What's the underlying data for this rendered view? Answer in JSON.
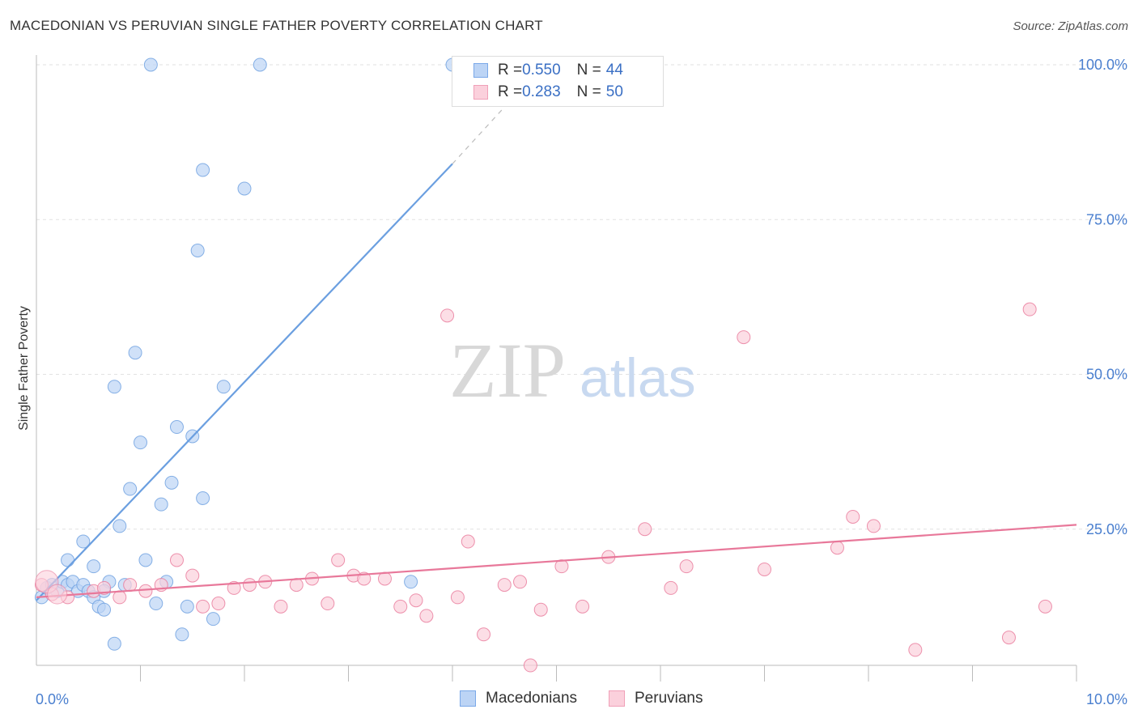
{
  "title": "MACEDONIAN VS PERUVIAN SINGLE FATHER POVERTY CORRELATION CHART",
  "source": "Source: ZipAtlas.com",
  "watermark": {
    "zip": "ZIP",
    "atlas": "atlas"
  },
  "legend": {
    "rows": [
      {
        "r_label": "R = ",
        "r_value": "0.550",
        "n_label": "N = ",
        "n_value": "44",
        "color": "#7aa8e8",
        "fill": "#bcd4f5"
      },
      {
        "r_label": "R = ",
        "r_value": "0.283",
        "n_label": "N = ",
        "n_value": "50",
        "color": "#f0a0b8",
        "fill": "#fbd0dc"
      }
    ]
  },
  "bottom_legend": [
    {
      "label": "Macedonians",
      "color": "#7aa8e8",
      "fill": "#bcd4f5"
    },
    {
      "label": "Peruvians",
      "color": "#f0a0b8",
      "fill": "#fbd0dc"
    }
  ],
  "chart_data": {
    "type": "scatter",
    "title": "MACEDONIAN VS PERUVIAN SINGLE FATHER POVERTY CORRELATION CHART",
    "xlabel": "",
    "ylabel": "Single Father Poverty",
    "xlim": [
      0,
      10
    ],
    "ylim": [
      0,
      105
    ],
    "x_ticks": [
      {
        "value": 0,
        "label": "0.0%"
      },
      {
        "value": 10,
        "label": "10.0%"
      }
    ],
    "y_ticks": [
      {
        "value": 25,
        "label": "25.0%"
      },
      {
        "value": 50,
        "label": "50.0%"
      },
      {
        "value": 75,
        "label": "75.0%"
      },
      {
        "value": 100,
        "label": "100.0%"
      }
    ],
    "grid": true,
    "series": [
      {
        "name": "Macedonians",
        "color": "#6b9fe0",
        "fill": "#bcd4f5",
        "trend": {
          "x0": 0,
          "y0": 13.5,
          "x1": 4.0,
          "y1": 84,
          "dash_to_x": 4.6,
          "dash_to_y": 95
        },
        "points": [
          [
            0.05,
            14
          ],
          [
            0.1,
            15.5
          ],
          [
            0.15,
            16
          ],
          [
            0.2,
            15
          ],
          [
            0.25,
            16.5
          ],
          [
            0.3,
            16
          ],
          [
            0.35,
            16.5
          ],
          [
            0.4,
            15
          ],
          [
            0.45,
            16
          ],
          [
            0.5,
            15
          ],
          [
            0.55,
            14
          ],
          [
            0.6,
            12.5
          ],
          [
            0.65,
            12
          ],
          [
            0.7,
            16.5
          ],
          [
            0.75,
            48
          ],
          [
            0.8,
            25.5
          ],
          [
            0.85,
            16
          ],
          [
            0.9,
            31.5
          ],
          [
            0.95,
            53.5
          ],
          [
            1.0,
            39
          ],
          [
            1.05,
            20
          ],
          [
            1.1,
            100
          ],
          [
            1.15,
            13
          ],
          [
            1.2,
            29
          ],
          [
            1.25,
            16.5
          ],
          [
            1.3,
            32.5
          ],
          [
            1.35,
            41.5
          ],
          [
            1.4,
            8
          ],
          [
            1.45,
            12.5
          ],
          [
            1.5,
            40
          ],
          [
            1.55,
            70
          ],
          [
            1.6,
            83
          ],
          [
            1.7,
            10.5
          ],
          [
            1.6,
            30
          ],
          [
            1.8,
            48
          ],
          [
            2.0,
            80
          ],
          [
            2.15,
            100
          ],
          [
            3.6,
            16.5
          ],
          [
            4.0,
            100
          ],
          [
            0.3,
            20
          ],
          [
            0.45,
            23
          ],
          [
            0.55,
            19
          ],
          [
            0.75,
            6.5
          ],
          [
            0.65,
            15
          ]
        ]
      },
      {
        "name": "Peruvians",
        "color": "#e8789a",
        "fill": "#fbd0dc",
        "trend": {
          "x0": 0,
          "y0": 14,
          "x1": 10,
          "y1": 25.7
        },
        "points": [
          [
            0.05,
            16
          ],
          [
            0.15,
            14.5
          ],
          [
            0.3,
            14
          ],
          [
            0.55,
            15
          ],
          [
            0.65,
            15.5
          ],
          [
            0.8,
            14
          ],
          [
            0.9,
            16
          ],
          [
            1.05,
            15
          ],
          [
            1.2,
            16
          ],
          [
            1.35,
            20
          ],
          [
            1.5,
            17.5
          ],
          [
            1.6,
            12.5
          ],
          [
            1.75,
            13
          ],
          [
            1.9,
            15.5
          ],
          [
            2.05,
            16
          ],
          [
            2.2,
            16.5
          ],
          [
            2.35,
            12.5
          ],
          [
            2.5,
            16
          ],
          [
            2.65,
            17
          ],
          [
            2.8,
            13
          ],
          [
            2.9,
            20
          ],
          [
            3.05,
            17.5
          ],
          [
            3.15,
            17
          ],
          [
            3.35,
            17
          ],
          [
            3.5,
            12.5
          ],
          [
            3.65,
            13.5
          ],
          [
            3.75,
            11
          ],
          [
            3.95,
            59.5
          ],
          [
            4.05,
            14
          ],
          [
            4.15,
            23
          ],
          [
            4.3,
            8
          ],
          [
            4.5,
            16
          ],
          [
            4.65,
            16.5
          ],
          [
            4.75,
            3
          ],
          [
            4.85,
            12
          ],
          [
            5.05,
            19
          ],
          [
            5.25,
            12.5
          ],
          [
            5.5,
            20.5
          ],
          [
            5.85,
            25
          ],
          [
            6.1,
            15.5
          ],
          [
            6.25,
            19
          ],
          [
            6.8,
            56
          ],
          [
            7.0,
            18.5
          ],
          [
            7.7,
            22
          ],
          [
            7.85,
            27
          ],
          [
            8.05,
            25.5
          ],
          [
            8.45,
            5.5
          ],
          [
            9.35,
            7.5
          ],
          [
            9.55,
            60.5
          ],
          [
            9.7,
            12.5
          ]
        ]
      }
    ]
  }
}
